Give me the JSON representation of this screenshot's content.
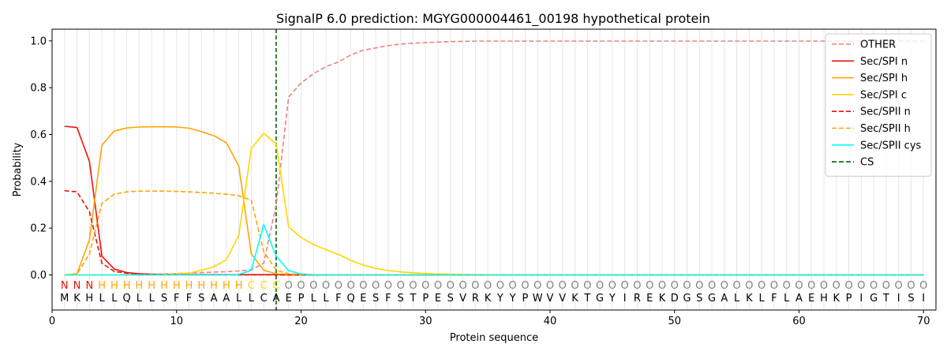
{
  "chart_data": {
    "type": "line",
    "title": "SignalP 6.0 prediction: MGYG000004461_00198 hypothetical protein",
    "xlabel": "Protein sequence",
    "ylabel": "Probability",
    "xlim": [
      0,
      71
    ],
    "ylim": [
      -0.15,
      1.05
    ],
    "xticks": [
      0,
      10,
      20,
      30,
      40,
      50,
      60,
      70
    ],
    "yticks": [
      0.0,
      0.2,
      0.4,
      0.6,
      0.8,
      1.0
    ],
    "xtick_labels": [
      "0",
      "10",
      "20",
      "30",
      "40",
      "50",
      "60",
      "70"
    ],
    "ytick_labels": [
      "0.0",
      "0.2",
      "0.4",
      "0.6",
      "0.8",
      "1.0"
    ],
    "vertical_gridlines": true,
    "legend_position": "top-right",
    "cs_position": 18,
    "sequence": [
      "M",
      "K",
      "H",
      "L",
      "L",
      "Q",
      "L",
      "L",
      "S",
      "F",
      "F",
      "S",
      "A",
      "A",
      "L",
      "L",
      "C",
      "A",
      "E",
      "P",
      "L",
      "L",
      "F",
      "Q",
      "E",
      "S",
      "F",
      "S",
      "T",
      "P",
      "E",
      "S",
      "V",
      "R",
      "K",
      "Y",
      "Y",
      "P",
      "W",
      "V",
      "V",
      "K",
      "T",
      "G",
      "Y",
      "I",
      "R",
      "E",
      "K",
      "D",
      "G",
      "S",
      "G",
      "A",
      "L",
      "K",
      "L",
      "F",
      "L",
      "A",
      "E",
      "H",
      "K",
      "P",
      "I",
      "G",
      "T",
      "I",
      "S",
      "I"
    ],
    "labels": [
      "N",
      "N",
      "N",
      "H",
      "H",
      "H",
      "H",
      "H",
      "H",
      "H",
      "H",
      "H",
      "H",
      "H",
      "H",
      "C",
      "C",
      "C",
      "O",
      "O",
      "O",
      "O",
      "O",
      "O",
      "O",
      "O",
      "O",
      "O",
      "O",
      "O",
      "O",
      "O",
      "O",
      "O",
      "O",
      "O",
      "O",
      "O",
      "O",
      "O",
      "O",
      "O",
      "O",
      "O",
      "O",
      "O",
      "O",
      "O",
      "O",
      "O",
      "O",
      "O",
      "O",
      "O",
      "O",
      "O",
      "O",
      "O",
      "O",
      "O",
      "O",
      "O",
      "O",
      "O",
      "O",
      "O",
      "O",
      "O",
      "O",
      "O"
    ],
    "label_colors": {
      "N": "#e8120c",
      "H": "#ffa500",
      "C": "#ffd700",
      "O": "#808080"
    },
    "series": [
      {
        "name": "OTHER",
        "color": "#f08080",
        "dash": true,
        "values": [
          0.0,
          0.0,
          0.0,
          0.0,
          0.0,
          0.0,
          0.0,
          0.002,
          0.004,
          0.006,
          0.008,
          0.01,
          0.012,
          0.014,
          0.017,
          0.022,
          0.05,
          0.3,
          0.76,
          0.82,
          0.86,
          0.89,
          0.91,
          0.94,
          0.96,
          0.97,
          0.98,
          0.986,
          0.99,
          0.993,
          0.995,
          0.997,
          0.998,
          0.999,
          0.999,
          0.999,
          0.999,
          0.999,
          0.999,
          0.999,
          0.999,
          0.999,
          0.999,
          0.999,
          0.999,
          0.999,
          0.999,
          0.999,
          0.999,
          0.999,
          0.999,
          0.999,
          0.999,
          0.999,
          0.999,
          0.999,
          0.999,
          0.999,
          0.999,
          0.999,
          0.999,
          0.999,
          0.999,
          0.999,
          0.999,
          0.999,
          0.999,
          0.999,
          0.999,
          0.999
        ]
      },
      {
        "name": "Sec/SPI n",
        "color": "#e8120c",
        "dash": false,
        "values": [
          0.635,
          0.63,
          0.485,
          0.08,
          0.025,
          0.01,
          0.005,
          0.003,
          0.002,
          0.002,
          0.001,
          0.001,
          0.001,
          0.001,
          0.001,
          0.001,
          0.001,
          0.001,
          0.0,
          0.0,
          0.0,
          0.0,
          0.0,
          0.0,
          0.0,
          0.0,
          0.0,
          0.0,
          0.0,
          0.0,
          0.0,
          0.0,
          0.0,
          0.0,
          0.0,
          0.0,
          0.0,
          0.0,
          0.0,
          0.0,
          0.0,
          0.0,
          0.0,
          0.0,
          0.0,
          0.0,
          0.0,
          0.0,
          0.0,
          0.0,
          0.0,
          0.0,
          0.0,
          0.0,
          0.0,
          0.0,
          0.0,
          0.0,
          0.0,
          0.0,
          0.0,
          0.0,
          0.0,
          0.0,
          0.0,
          0.0,
          0.0,
          0.0,
          0.0,
          0.0
        ]
      },
      {
        "name": "Sec/SPI h",
        "color": "#ffa500",
        "dash": false,
        "values": [
          0.0,
          0.005,
          0.15,
          0.555,
          0.615,
          0.628,
          0.632,
          0.633,
          0.633,
          0.632,
          0.627,
          0.612,
          0.595,
          0.565,
          0.465,
          0.09,
          0.02,
          0.005,
          0.002,
          0.001,
          0.0,
          0.0,
          0.0,
          0.0,
          0.0,
          0.0,
          0.0,
          0.0,
          0.0,
          0.0,
          0.0,
          0.0,
          0.0,
          0.0,
          0.0,
          0.0,
          0.0,
          0.0,
          0.0,
          0.0,
          0.0,
          0.0,
          0.0,
          0.0,
          0.0,
          0.0,
          0.0,
          0.0,
          0.0,
          0.0,
          0.0,
          0.0,
          0.0,
          0.0,
          0.0,
          0.0,
          0.0,
          0.0,
          0.0,
          0.0,
          0.0,
          0.0,
          0.0,
          0.0,
          0.0,
          0.0,
          0.0,
          0.0,
          0.0,
          0.0
        ]
      },
      {
        "name": "Sec/SPI c",
        "color": "#ffd700",
        "dash": false,
        "values": [
          0.0,
          0.0,
          0.0,
          0.0,
          0.0,
          0.0,
          0.0,
          0.001,
          0.002,
          0.004,
          0.008,
          0.02,
          0.035,
          0.065,
          0.17,
          0.54,
          0.605,
          0.56,
          0.205,
          0.16,
          0.13,
          0.108,
          0.088,
          0.062,
          0.042,
          0.028,
          0.019,
          0.013,
          0.009,
          0.006,
          0.004,
          0.003,
          0.002,
          0.001,
          0.001,
          0.0,
          0.0,
          0.0,
          0.0,
          0.0,
          0.0,
          0.0,
          0.0,
          0.0,
          0.0,
          0.0,
          0.0,
          0.0,
          0.0,
          0.0,
          0.0,
          0.0,
          0.0,
          0.0,
          0.0,
          0.0,
          0.0,
          0.0,
          0.0,
          0.0,
          0.0,
          0.0,
          0.0,
          0.0,
          0.0,
          0.0,
          0.0,
          0.0,
          0.0,
          0.0
        ]
      },
      {
        "name": "Sec/SPII n",
        "color": "#e8120c",
        "dash": true,
        "values": [
          0.36,
          0.355,
          0.27,
          0.05,
          0.015,
          0.007,
          0.004,
          0.002,
          0.001,
          0.001,
          0.001,
          0.0,
          0.0,
          0.0,
          0.0,
          0.0,
          0.0,
          0.0,
          0.0,
          0.0,
          0.0,
          0.0,
          0.0,
          0.0,
          0.0,
          0.0,
          0.0,
          0.0,
          0.0,
          0.0,
          0.0,
          0.0,
          0.0,
          0.0,
          0.0,
          0.0,
          0.0,
          0.0,
          0.0,
          0.0,
          0.0,
          0.0,
          0.0,
          0.0,
          0.0,
          0.0,
          0.0,
          0.0,
          0.0,
          0.0,
          0.0,
          0.0,
          0.0,
          0.0,
          0.0,
          0.0,
          0.0,
          0.0,
          0.0,
          0.0,
          0.0,
          0.0,
          0.0,
          0.0,
          0.0,
          0.0,
          0.0,
          0.0,
          0.0,
          0.0
        ]
      },
      {
        "name": "Sec/SPII h",
        "color": "#ffa500",
        "dash": true,
        "values": [
          0.0,
          0.003,
          0.09,
          0.305,
          0.345,
          0.355,
          0.358,
          0.358,
          0.358,
          0.357,
          0.355,
          0.352,
          0.349,
          0.345,
          0.338,
          0.32,
          0.1,
          0.02,
          0.005,
          0.002,
          0.001,
          0.0,
          0.0,
          0.0,
          0.0,
          0.0,
          0.0,
          0.0,
          0.0,
          0.0,
          0.0,
          0.0,
          0.0,
          0.0,
          0.0,
          0.0,
          0.0,
          0.0,
          0.0,
          0.0,
          0.0,
          0.0,
          0.0,
          0.0,
          0.0,
          0.0,
          0.0,
          0.0,
          0.0,
          0.0,
          0.0,
          0.0,
          0.0,
          0.0,
          0.0,
          0.0,
          0.0,
          0.0,
          0.0,
          0.0,
          0.0,
          0.0,
          0.0,
          0.0,
          0.0,
          0.0,
          0.0,
          0.0,
          0.0,
          0.0
        ]
      },
      {
        "name": "Sec/SPII cys",
        "color": "#00ffff",
        "dash": false,
        "values": [
          0.0,
          0.0,
          0.0,
          0.0,
          0.0,
          0.0,
          0.0,
          0.0,
          0.0,
          0.0,
          0.0,
          0.0,
          0.0,
          0.0,
          0.002,
          0.02,
          0.215,
          0.08,
          0.018,
          0.004,
          0.001,
          0.0,
          0.0,
          0.0,
          0.0,
          0.0,
          0.0,
          0.0,
          0.0,
          0.0,
          0.0,
          0.0,
          0.0,
          0.0,
          0.0,
          0.0,
          0.0,
          0.0,
          0.0,
          0.0,
          0.0,
          0.0,
          0.0,
          0.0,
          0.0,
          0.0,
          0.0,
          0.0,
          0.0,
          0.0,
          0.0,
          0.0,
          0.0,
          0.0,
          0.0,
          0.0,
          0.0,
          0.0,
          0.0,
          0.0,
          0.0,
          0.0,
          0.0,
          0.0,
          0.0,
          0.0,
          0.0,
          0.0,
          0.0,
          0.0
        ]
      }
    ],
    "cs_legend": {
      "name": "CS",
      "color": "#006400",
      "dash": true
    }
  }
}
